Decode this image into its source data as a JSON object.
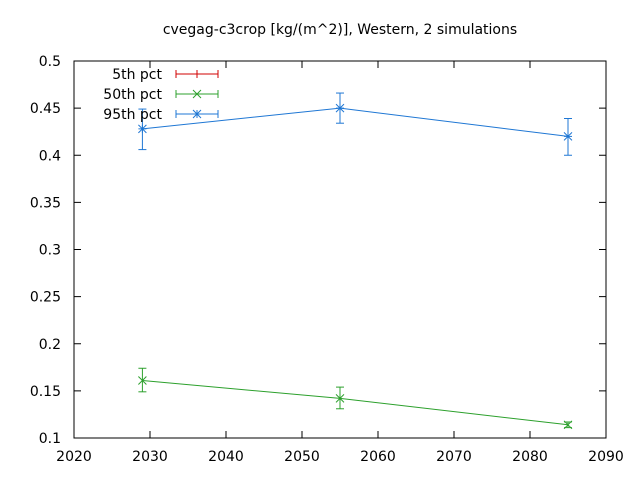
{
  "chart_data": {
    "type": "line",
    "title": "cvegag-c3crop [kg/(m^2)], Western, 2 simulations",
    "xlabel": "",
    "ylabel": "",
    "xlim": [
      2020,
      2090
    ],
    "ylim": [
      0.1,
      0.5
    ],
    "xticks": [
      2020,
      2030,
      2040,
      2050,
      2060,
      2070,
      2080,
      2090
    ],
    "yticks": [
      0.1,
      0.15,
      0.2,
      0.25,
      0.3,
      0.35,
      0.4,
      0.45,
      0.5
    ],
    "xtick_labels": [
      "2020",
      "2030",
      "2040",
      "2050",
      "2060",
      "2070",
      "2080",
      "2090"
    ],
    "ytick_labels": [
      "0.1",
      "0.15",
      "0.2",
      "0.25",
      "0.3",
      "0.35",
      "0.4",
      "0.45",
      "0.5"
    ],
    "legend_position": "top-left",
    "grid": false,
    "series": [
      {
        "name": "5th pct",
        "color": "#d00000",
        "marker": "plus",
        "x": [],
        "y": [],
        "err_low": [],
        "err_high": []
      },
      {
        "name": "50th pct",
        "color": "#2ca02c",
        "marker": "cross",
        "x": [
          2029,
          2055,
          2085
        ],
        "y": [
          0.161,
          0.142,
          0.114
        ],
        "err_low": [
          0.149,
          0.131,
          0.111
        ],
        "err_high": [
          0.174,
          0.154,
          0.117
        ]
      },
      {
        "name": "95th pct",
        "color": "#1f77d4",
        "marker": "star",
        "x": [
          2029,
          2055,
          2085
        ],
        "y": [
          0.428,
          0.45,
          0.42
        ],
        "err_low": [
          0.406,
          0.434,
          0.4
        ],
        "err_high": [
          0.449,
          0.466,
          0.439
        ]
      }
    ]
  }
}
